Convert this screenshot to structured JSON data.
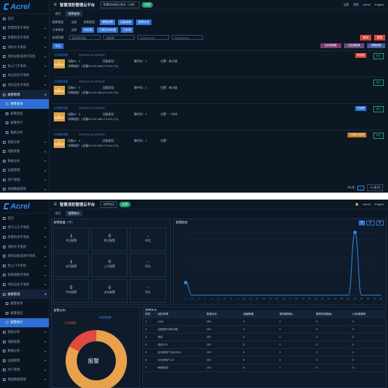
{
  "p1": {
    "logo": "Acrel",
    "menu": [
      {
        "label": "首页",
        "kind": "item"
      },
      {
        "label": "智慧用电子系统",
        "kind": "group"
      },
      {
        "label": "防雷检测子系统",
        "kind": "group"
      },
      {
        "label": "消防水子系统",
        "kind": "group"
      },
      {
        "label": "消防设备电源子系统",
        "kind": "group"
      },
      {
        "label": "防火门子系统",
        "kind": "group"
      },
      {
        "label": "余压监控子系统",
        "kind": "group"
      },
      {
        "label": "消防应急子系统",
        "kind": "group"
      },
      {
        "label": "报警管理",
        "kind": "active"
      },
      {
        "label": "报警查询",
        "kind": "sel"
      },
      {
        "label": "报警类型",
        "kind": "sub"
      },
      {
        "label": "报警统计",
        "kind": "sub"
      },
      {
        "label": "报表分析",
        "kind": "sub"
      },
      {
        "label": "能耗分析",
        "kind": "group"
      },
      {
        "label": "电能质量",
        "kind": "group"
      },
      {
        "label": "数据分析",
        "kind": "group"
      },
      {
        "label": "运维管理",
        "kind": "group"
      },
      {
        "label": "用户管理",
        "kind": "group"
      },
      {
        "label": "基础数据管理",
        "kind": "group"
      }
    ],
    "title": "智慧消防管理云平台",
    "dropdown": "智慧用电演示测试（示例）",
    "pill": "在线",
    "top_right": [
      "全屏",
      "消息",
      "admin",
      "English"
    ],
    "tabs": [
      "首页",
      "报警查询"
    ],
    "filter": {
      "type_label": "报警类型",
      "type_chips": [
        "全部",
        "报警类型",
        "预警报警",
        "设备故障",
        "报警信息"
      ],
      "state_label": "工单状态",
      "state_chips": [
        "全部",
        "未处理",
        "已报告未处理",
        "已处理"
      ],
      "scope_label": "处理范围",
      "ph1": "请选择设备",
      "ph2": "请选择",
      "date_from": "2020-01-01",
      "date_to": "2020-04-15",
      "search": "查询",
      "reset": "重置"
    },
    "export": "导出",
    "legend": [
      "未处理报警",
      "已处理报警",
      "预警报警"
    ],
    "cards": [
      {
        "name": "江苏安科瑞",
        "time": "2020-04-15 15:06:22",
        "badge": "报警事件",
        "f1": "设备ID：0",
        "f2": "设备类型：",
        "f3": "事件码：1",
        "f4": "位置：新大楼",
        "detail": "详情描述：(设备ID:172.168.171.6.9.171)",
        "tag": "未处理",
        "tagc": "#d9433b",
        "ok": "确认"
      },
      {
        "name": "江苏安科瑞",
        "time": "2020-04-15 15:06:22",
        "badge": "报警事件",
        "f1": "设备ID：0",
        "f2": "设备类型：",
        "f3": "事件码：1",
        "f4": "位置：新大楼",
        "detail": "详情描述：(设备ID:172.168.171.6.9.171)",
        "tag": "",
        "tagc": "",
        "ok": "确认"
      },
      {
        "name": "江苏安科瑞",
        "time": "2020-04-15 15:06:22",
        "badge": "报警事件",
        "f1": "设备ID：0",
        "f2": "设备类型：",
        "f3": "事件码：1",
        "f4": "位置：一车间",
        "detail": "详情描述：(设备ID:172.168.171.6.9.171)",
        "tag": "已处理",
        "tagc": "#2e6fd6",
        "ok": "确认"
      },
      {
        "name": "江苏安科瑞",
        "time": "2020-04-15 15:06:22",
        "badge": "报警事件",
        "f1": "设备ID：0",
        "f2": "设备类型：",
        "f3": "事件码：1",
        "f4": "位置：",
        "detail": "详情描述：(设备ID:172.168.171.6.9.171)",
        "tag": "已报告未处理",
        "tagc": "#c57a2b",
        "ok": "确认"
      }
    ],
    "pager": {
      "total": "共1项",
      "page": "1",
      "per": "10 条/页"
    }
  },
  "p2": {
    "logo": "Acrel",
    "menu": [
      {
        "label": "首页",
        "kind": "item"
      },
      {
        "label": "电气火灾子系统",
        "kind": "group"
      },
      {
        "label": "防雷检测子系统",
        "kind": "group"
      },
      {
        "label": "消防水子系统",
        "kind": "group"
      },
      {
        "label": "消防设备电源子系统",
        "kind": "group"
      },
      {
        "label": "防火门子系统",
        "kind": "group"
      },
      {
        "label": "智能疏散子系统",
        "kind": "group"
      },
      {
        "label": "消防应急子系统",
        "kind": "group"
      },
      {
        "label": "报警管理",
        "kind": "active"
      },
      {
        "label": "报警查询",
        "kind": "sub"
      },
      {
        "label": "报警类型",
        "kind": "sub"
      },
      {
        "label": "报警统计",
        "kind": "sel"
      },
      {
        "label": "能耗分析",
        "kind": "group"
      },
      {
        "label": "电能质量",
        "kind": "group"
      },
      {
        "label": "数据分析",
        "kind": "group"
      },
      {
        "label": "运维管理",
        "kind": "group"
      },
      {
        "label": "用户管理",
        "kind": "group"
      },
      {
        "label": "基础数据管理",
        "kind": "group"
      }
    ],
    "title": "智慧消防管理云平台",
    "dropdown": "选择项目",
    "pill": "在线",
    "top_right": [
      "admin",
      "English"
    ],
    "tabs": [
      "首页",
      "报警统计"
    ],
    "stats_title": "报警数量（个）",
    "stats": [
      {
        "v": "1",
        "l": "今日报警"
      },
      {
        "v": "0",
        "l": "昨日报警"
      },
      {
        "v": "-",
        "l": "环比"
      },
      {
        "v": "1",
        "l": "本月报警"
      },
      {
        "v": "0",
        "l": "上月报警"
      },
      {
        "v": "-",
        "l": "环比"
      },
      {
        "v": "5",
        "l": "今年报警"
      },
      {
        "v": "0",
        "l": "去年报警"
      },
      {
        "v": "-",
        "l": "环比"
      }
    ],
    "trend_title": "报警趋势",
    "trend_tabs": [
      "日",
      "月",
      "年"
    ],
    "dist_title": "报警分布",
    "donut_center": "报警",
    "donut_labels": [
      "已处理报警",
      "未处理报警"
    ],
    "rank_title": "报警排名",
    "table": {
      "headers": [
        "排名",
        "项目名称",
        "报警总计",
        "设备数量",
        "报警量指标",
        "报警处理指标",
        "已处理报警"
      ],
      "rows": [
        [
          "1",
          "4124",
          "100",
          "0",
          "0",
          "0",
          "0"
        ],
        [
          "2",
          "设备提升测试2楼",
          "100",
          "0",
          "0",
          "0",
          "0"
        ],
        [
          "3",
          "测试",
          "100",
          "0",
          "0",
          "0",
          "0"
        ],
        [
          "4",
          "测试123",
          "100",
          "0",
          "0",
          "0",
          "0"
        ],
        [
          "5",
          "区间测试气5区0324",
          "100",
          "0",
          "0",
          "0",
          "0"
        ],
        [
          "6",
          "公司测试气24",
          "100",
          "0",
          "0",
          "0",
          "0"
        ],
        [
          "7",
          "新增测试",
          "100",
          "0",
          "0",
          "0",
          "0"
        ]
      ]
    },
    "chart_data": {
      "type": "line",
      "title": "报警趋势",
      "x": [
        1,
        2,
        3,
        4,
        5,
        6,
        7,
        8,
        9,
        10,
        11,
        12,
        13,
        14,
        15,
        16,
        17,
        18,
        19,
        20,
        21,
        22,
        23,
        24,
        25,
        26,
        27,
        28,
        29,
        30,
        31
      ],
      "values": [
        1,
        0,
        0,
        0,
        0,
        0,
        0,
        0,
        0,
        0,
        0,
        0,
        0,
        0,
        0,
        0,
        0,
        0,
        0,
        0,
        0,
        0,
        0,
        0,
        0,
        0,
        5,
        0,
        0,
        0,
        0
      ],
      "ylim": [
        0,
        5
      ],
      "grid": true
    }
  }
}
